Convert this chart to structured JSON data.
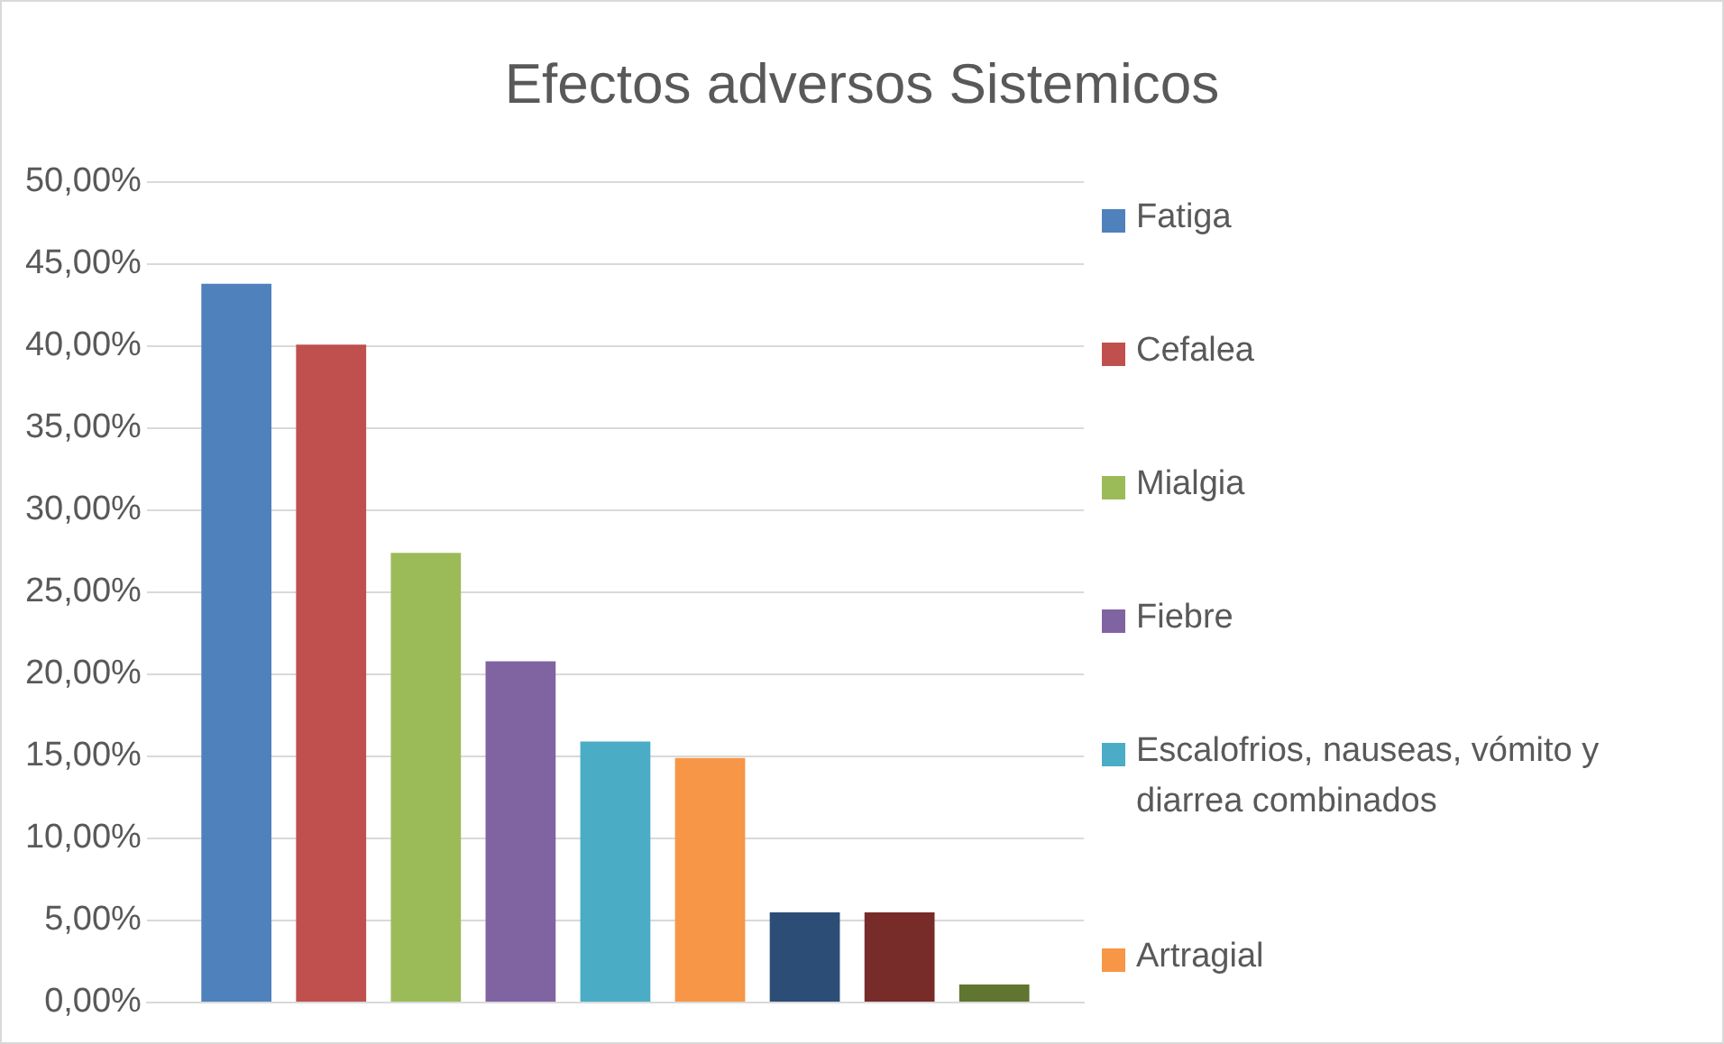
{
  "chart_data": {
    "type": "bar",
    "title": "Efectos adversos Sistemicos",
    "categories": [
      null
    ],
    "series": [
      {
        "name": "Fatiga",
        "color": "#4f81bd",
        "values": [
          43.8
        ]
      },
      {
        "name": "Cefalea",
        "color": "#c0504d",
        "values": [
          40.1
        ]
      },
      {
        "name": "Mialgia",
        "color": "#9bbb59",
        "values": [
          27.4
        ]
      },
      {
        "name": "Fiebre",
        "color": "#8064a2",
        "values": [
          20.8
        ]
      },
      {
        "name": "Escalofrios, nauseas, vómito y diarrea combinados",
        "color": "#4bacc6",
        "values": [
          15.9
        ]
      },
      {
        "name": "Artragial",
        "color": "#f79646",
        "values": [
          14.9
        ]
      },
      {
        "color": "#2c4d75",
        "values": [
          5.5
        ]
      },
      {
        "color": "#772c2a",
        "values": [
          5.5
        ]
      },
      {
        "color": "#5f7530",
        "values": [
          1.1
        ]
      }
    ],
    "ylim": [
      0,
      50
    ],
    "yticks": [
      {
        "value": 0,
        "label": "0,00%"
      },
      {
        "value": 5,
        "label": "5,00%"
      },
      {
        "value": 10,
        "label": "10,00%"
      },
      {
        "value": 15,
        "label": "15,00%"
      },
      {
        "value": 20,
        "label": "20,00%"
      },
      {
        "value": 25,
        "label": "25,00%"
      },
      {
        "value": 30,
        "label": "30,00%"
      },
      {
        "value": 35,
        "label": "35,00%"
      },
      {
        "value": 40,
        "label": "40,00%"
      },
      {
        "value": 45,
        "label": "45,00%"
      },
      {
        "value": 50,
        "label": "50,00%"
      }
    ],
    "grid": "y",
    "legend": "right"
  }
}
